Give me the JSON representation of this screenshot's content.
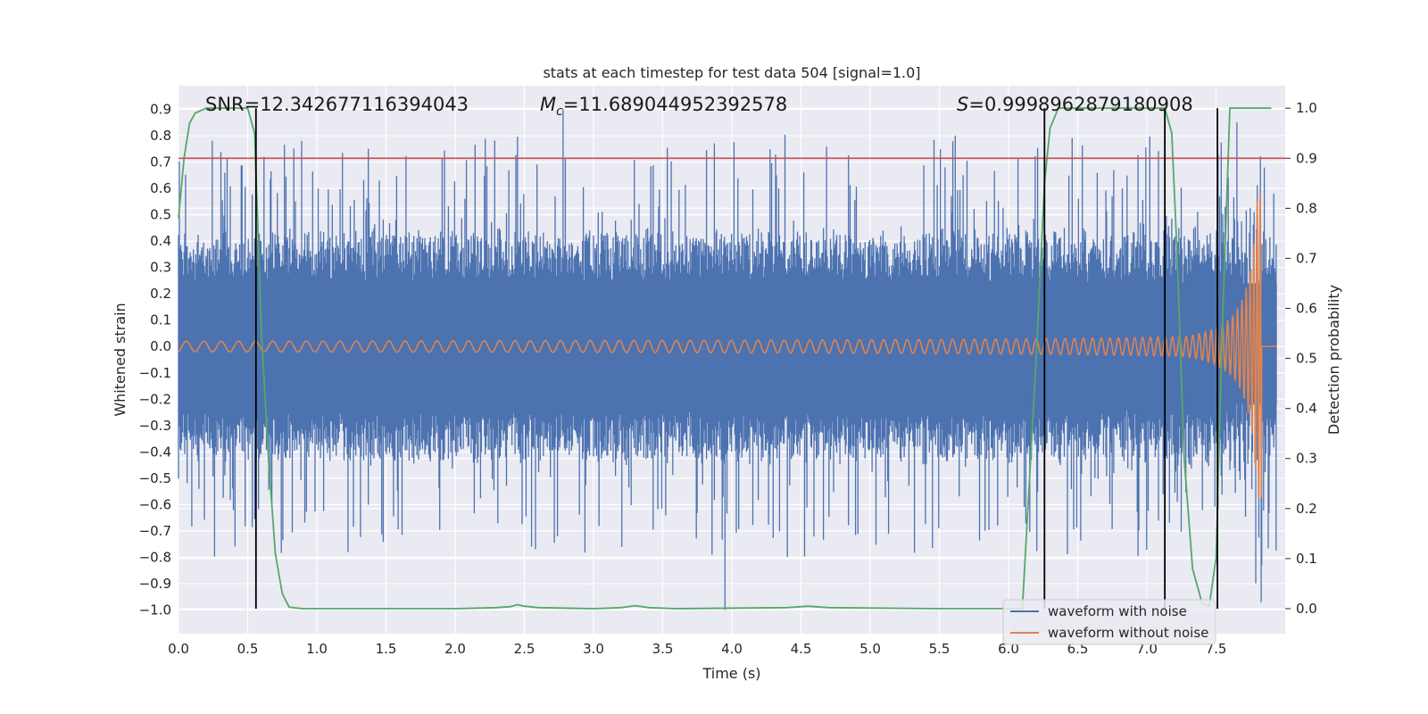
{
  "chart_data": {
    "type": "line",
    "title": "stats at each timestep for test data 504 [signal=1.0]",
    "xlabel": "Time (s)",
    "ylabel": "Whitened strain",
    "ylabel_right": "Detection probability",
    "xlim": [
      0.0,
      8.0
    ],
    "ylim": [
      -1.09,
      0.99
    ],
    "ylim_right": [
      -0.05,
      1.045
    ],
    "x_ticks": [
      0.0,
      0.5,
      1.0,
      1.5,
      2.0,
      2.5,
      3.0,
      3.5,
      4.0,
      4.5,
      5.0,
      5.5,
      6.0,
      6.5,
      7.0,
      7.5
    ],
    "x_tick_labels": [
      "0.0",
      "0.5",
      "1.0",
      "1.5",
      "2.0",
      "2.5",
      "3.0",
      "3.5",
      "4.0",
      "4.5",
      "5.0",
      "5.5",
      "6.0",
      "6.5",
      "7.0",
      "7.5"
    ],
    "y_ticks": [
      0.9,
      0.8,
      0.7,
      0.6,
      0.5,
      0.4,
      0.3,
      0.2,
      0.1,
      0.0,
      -0.1,
      -0.2,
      -0.3,
      -0.4,
      -0.5,
      -0.6,
      -0.7,
      -0.8,
      -0.9,
      -1.0
    ],
    "y_tick_labels": [
      "0.9",
      "0.8",
      "0.7",
      "0.6",
      "0.5",
      "0.4",
      "0.3",
      "0.2",
      "0.1",
      "0.0",
      "−0.1",
      "−0.2",
      "−0.3",
      "−0.4",
      "−0.5",
      "−0.6",
      "−0.7",
      "−0.8",
      "−0.9",
      "−1.0"
    ],
    "y_right_ticks": [
      1.0,
      0.9,
      0.8,
      0.7,
      0.6,
      0.5,
      0.4,
      0.3,
      0.2,
      0.1,
      0.0
    ],
    "y_right_tick_labels": [
      "1.0",
      "0.9",
      "0.8",
      "0.7",
      "0.6",
      "0.5",
      "0.4",
      "0.3",
      "0.2",
      "0.1",
      "0.0"
    ],
    "grid": true,
    "annotations": {
      "snr": "SNR=12.342677116394043",
      "mc_symbol": "M",
      "mc_sub": "c",
      "mc_value": "=11.689044952392578",
      "s_symbol": "S",
      "s_value": "=0.9998962879180908"
    },
    "threshold_right": 0.9,
    "vertical_markers_x": [
      0.56,
      6.26,
      7.13,
      7.51
    ],
    "series": [
      {
        "name": "waveform with noise",
        "color": "#4c72b0",
        "description": "whitened strain with noise, roughly uniform amplitude ~0.35 with spikes",
        "mean_amplitude": 0.35,
        "extremes": [
          [
            3.95,
            -1.0
          ],
          [
            2.78,
            0.9
          ],
          [
            7.83,
            -0.83
          ]
        ]
      },
      {
        "name": "waveform without noise",
        "color": "#dd8452",
        "description": "chirp signal growing in amplitude and frequency until merger near 7.83 s",
        "chirp_end_x": 7.83,
        "max_amplitude": 0.58,
        "start_amplitude": 0.02
      },
      {
        "name": "detection probability",
        "color": "#55a868",
        "axis": "right",
        "x": [
          0.0,
          0.04,
          0.08,
          0.12,
          0.2,
          0.3,
          0.4,
          0.5,
          0.55,
          0.6,
          0.65,
          0.7,
          0.75,
          0.8,
          0.9,
          1.2,
          2.0,
          2.3,
          2.4,
          2.45,
          2.5,
          2.6,
          3.0,
          3.2,
          3.3,
          3.4,
          3.6,
          4.4,
          4.55,
          4.7,
          5.5,
          6.1,
          6.2,
          6.26,
          6.3,
          6.36,
          6.5,
          7.0,
          7.13,
          7.18,
          7.22,
          7.27,
          7.33,
          7.4,
          7.45,
          7.5,
          7.55,
          7.6,
          7.9
        ],
        "y": [
          0.78,
          0.9,
          0.97,
          0.99,
          1.0,
          1.0,
          1.0,
          1.0,
          0.95,
          0.55,
          0.3,
          0.11,
          0.03,
          0.003,
          0.0,
          0.0,
          0.0,
          0.002,
          0.004,
          0.008,
          0.005,
          0.002,
          0.0,
          0.002,
          0.006,
          0.002,
          0.0,
          0.002,
          0.005,
          0.002,
          0.0,
          0.0,
          0.5,
          0.85,
          0.96,
          1.0,
          1.0,
          1.0,
          1.0,
          0.95,
          0.7,
          0.3,
          0.08,
          0.01,
          0.005,
          0.1,
          0.6,
          1.0,
          1.0
        ]
      }
    ],
    "threshold_color": "#c44e52",
    "legend": {
      "placement": "lower-right",
      "entries": [
        "waveform with noise",
        "waveform without noise"
      ]
    }
  }
}
